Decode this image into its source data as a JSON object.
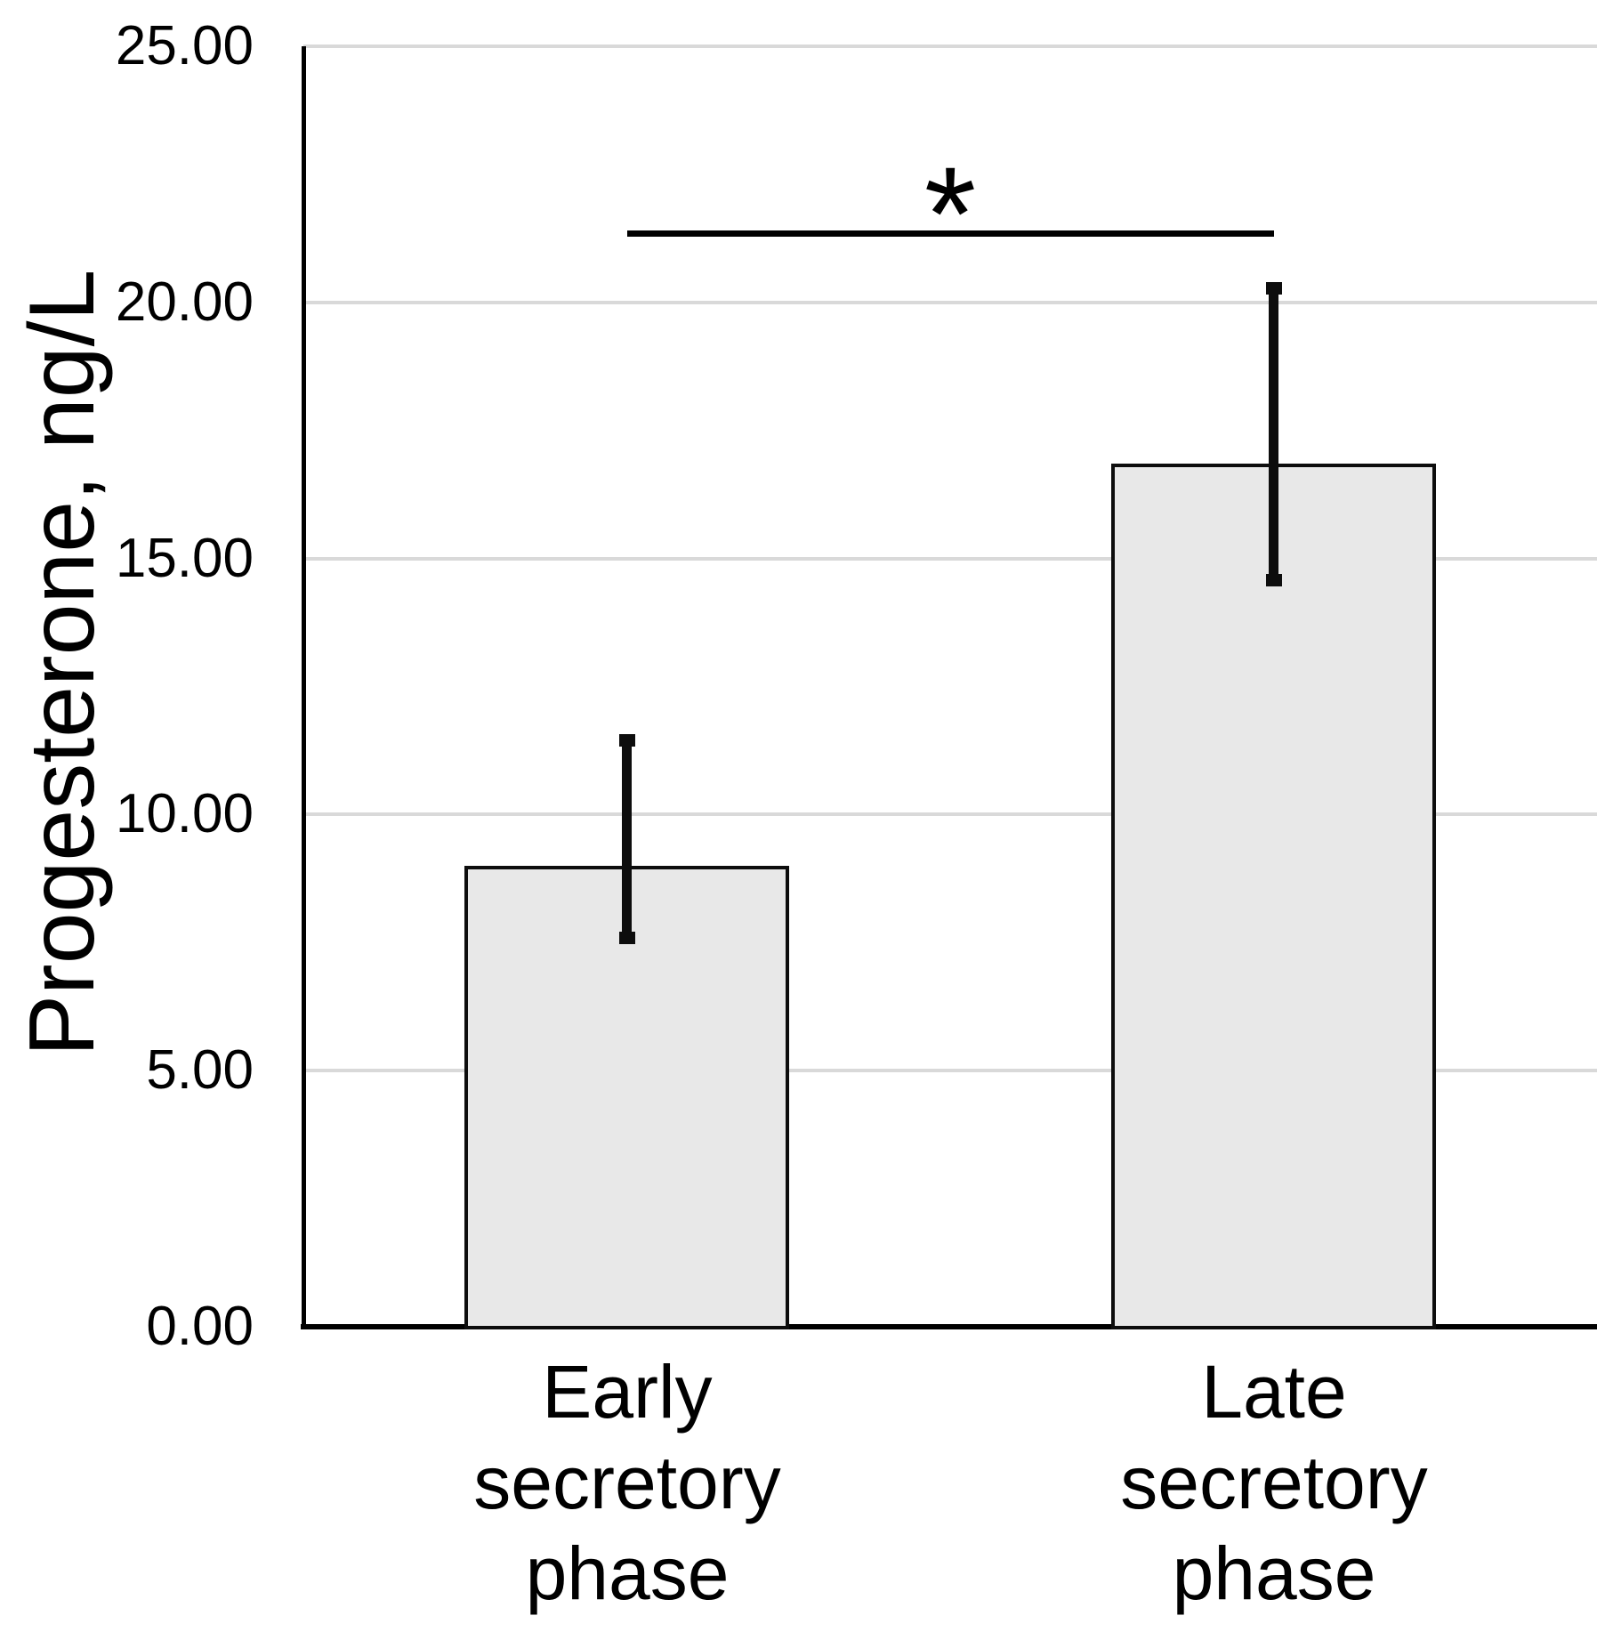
{
  "chart_data": {
    "type": "bar",
    "title": "",
    "xlabel": "",
    "ylabel": "Progesterone, ng/L",
    "categories": [
      "Early secretory phase",
      "Late secretory phase"
    ],
    "category_lines": [
      [
        "Early",
        "secretory",
        "phase"
      ],
      [
        "Late",
        "secretory",
        "phase"
      ]
    ],
    "series": [
      {
        "name": "Progesterone",
        "values": [
          9.0,
          16.85
        ],
        "error_top": [
          11.45,
          20.28
        ],
        "error_bottom": [
          7.6,
          14.57
        ]
      }
    ],
    "ylim": [
      0,
      25
    ],
    "ytick_step": 5,
    "yticks": [
      {
        "value": 0,
        "label": "0.00"
      },
      {
        "value": 5,
        "label": "5.00"
      },
      {
        "value": 10,
        "label": "10.00"
      },
      {
        "value": 15,
        "label": "15.00"
      },
      {
        "value": 20,
        "label": "20.00"
      },
      {
        "value": 25,
        "label": "25.00"
      }
    ],
    "grid": "horizontal",
    "legend": "none",
    "bar_fill": "#e8e8e8",
    "bar_border": "#0d0d0d",
    "gridline_color": "#d9d9d9",
    "axis_color": "#000000",
    "error_bar_color": "#0d0d0d",
    "significance": {
      "label": "*",
      "between": [
        "Early secretory phase",
        "Late secretory phase"
      ],
      "line_y_value": 21.35
    }
  }
}
